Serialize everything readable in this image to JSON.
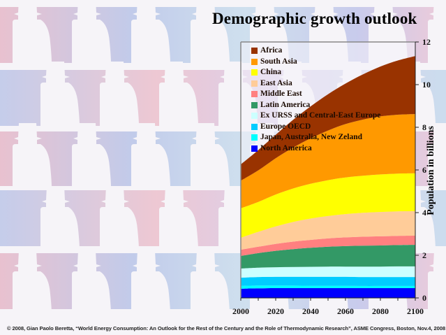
{
  "chart_data": {
    "type": "area",
    "stacked": true,
    "title": "Demographic growth outlook",
    "xlabel": "",
    "ylabel": "Population in billions",
    "xlim": [
      2000,
      2100
    ],
    "ylim": [
      0,
      12
    ],
    "x_ticks": [
      2000,
      2020,
      2040,
      2060,
      2080,
      2100
    ],
    "y_ticks": [
      0,
      2,
      4,
      6,
      8,
      10,
      12
    ],
    "legend_position": "top-left",
    "grid": false,
    "x": [
      2000,
      2010,
      2020,
      2030,
      2040,
      2050,
      2060,
      2070,
      2080,
      2090,
      2100
    ],
    "series": [
      {
        "name": "North America",
        "color": "#0000ff",
        "values": [
          0.43,
          0.45,
          0.46,
          0.46,
          0.46,
          0.46,
          0.46,
          0.46,
          0.46,
          0.46,
          0.46
        ]
      },
      {
        "name": "Japan, Australia, New Zeland",
        "color": "#00ffff",
        "values": [
          0.13,
          0.13,
          0.12,
          0.12,
          0.11,
          0.11,
          0.11,
          0.1,
          0.1,
          0.1,
          0.1
        ]
      },
      {
        "name": "Europe OECD",
        "color": "#00ccff",
        "values": [
          0.39,
          0.4,
          0.41,
          0.41,
          0.42,
          0.42,
          0.42,
          0.42,
          0.42,
          0.42,
          0.42
        ]
      },
      {
        "name": "Ex URSS and Central-East Europe",
        "color": "#ccffff",
        "values": [
          0.43,
          0.44,
          0.45,
          0.46,
          0.47,
          0.48,
          0.48,
          0.49,
          0.49,
          0.5,
          0.5
        ]
      },
      {
        "name": "Latin America",
        "color": "#339966",
        "values": [
          0.59,
          0.68,
          0.77,
          0.84,
          0.89,
          0.93,
          0.96,
          0.98,
          0.99,
          1.0,
          1.01
        ]
      },
      {
        "name": "Middle East",
        "color": "#ff8080",
        "values": [
          0.29,
          0.3,
          0.32,
          0.35,
          0.37,
          0.39,
          0.41,
          0.42,
          0.43,
          0.43,
          0.43
        ]
      },
      {
        "name": "East Asia",
        "color": "#ffcc99",
        "values": [
          0.56,
          0.7,
          0.82,
          0.92,
          1.0,
          1.05,
          1.09,
          1.12,
          1.14,
          1.15,
          1.15
        ]
      },
      {
        "name": "China",
        "color": "#ffff00",
        "values": [
          1.38,
          1.4,
          1.5,
          1.57,
          1.63,
          1.68,
          1.72,
          1.74,
          1.76,
          1.77,
          1.77
        ]
      },
      {
        "name": "South Asia",
        "color": "#ff9900",
        "values": [
          1.3,
          1.48,
          1.7,
          1.92,
          2.13,
          2.33,
          2.5,
          2.63,
          2.72,
          2.76,
          2.78
        ]
      },
      {
        "name": "Africa",
        "color": "#993300",
        "values": [
          0.76,
          0.95,
          1.1,
          1.3,
          1.5,
          1.7,
          1.9,
          2.12,
          2.34,
          2.54,
          2.72
        ]
      }
    ]
  },
  "legend": {
    "items": [
      {
        "label": "Africa",
        "color": "#993300"
      },
      {
        "label": "South Asia",
        "color": "#ff9900"
      },
      {
        "label": "China",
        "color": "#ffff00"
      },
      {
        "label": "East Asia",
        "color": "#ffcc99"
      },
      {
        "label": "Middle East",
        "color": "#ff8080"
      },
      {
        "label": "Latin America",
        "color": "#339966"
      },
      {
        "label": "Ex URSS and Central-East Europe",
        "color": "#ccffff"
      },
      {
        "label": "Europe OECD",
        "color": "#00ccff"
      },
      {
        "label": "Japan, Australia, New Zeland",
        "color": "#00ffff"
      },
      {
        "label": "North America",
        "color": "#0000ff"
      }
    ]
  },
  "footer": {
    "citation": "© 2008, Gian Paolo Beretta, “World Energy Consumption: An Outlook for the Rest of the Century and the Role of Thermodynamic Research”, ASME Congress, Boston, Nov.4, 2008"
  }
}
